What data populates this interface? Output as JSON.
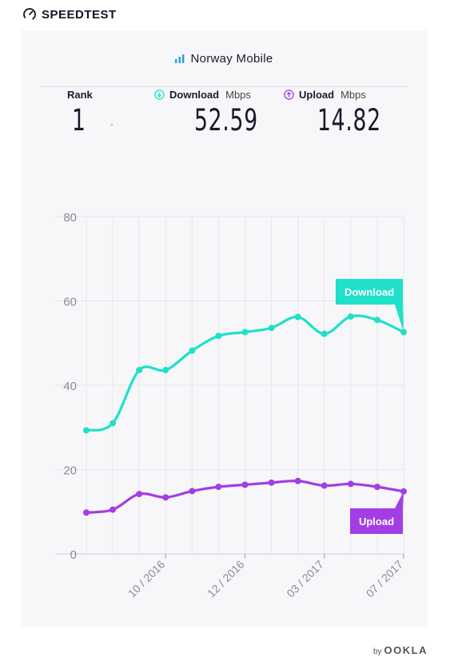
{
  "brand": {
    "name": "SPEEDTEST",
    "icon": "gauge-icon"
  },
  "card": {
    "title": "Norway Mobile",
    "title_icon": "signal-bars-icon"
  },
  "metrics": {
    "rank": {
      "label": "Rank",
      "value": "1",
      "change": "-"
    },
    "download": {
      "label": "Download",
      "unit": "Mbps",
      "value": "52.59",
      "color": "#1fe0c8"
    },
    "upload": {
      "label": "Upload",
      "unit": "Mbps",
      "value": "14.82",
      "color": "#a23ee4"
    }
  },
  "footer": {
    "by": "by",
    "company": "OOKLA"
  },
  "chart_data": {
    "type": "line",
    "ylim": [
      0,
      80
    ],
    "yticks": [
      0,
      20,
      40,
      60,
      80
    ],
    "xtick_labels": [
      "10 / 2016",
      "12 / 2016",
      "03 / 2017",
      "07 / 2017"
    ],
    "xtick_index": [
      3,
      6,
      9,
      12
    ],
    "grid": true,
    "series": [
      {
        "name": "Download",
        "color": "#1fe0c8",
        "values": [
          29.3,
          31,
          43.6,
          43.6,
          48.2,
          51.7,
          52.6,
          53.6,
          56.2,
          52.2,
          56.3,
          55.5,
          52.59
        ]
      },
      {
        "name": "Upload",
        "color": "#a23ee4",
        "values": [
          9.8,
          10.5,
          14.2,
          13.4,
          14.9,
          15.9,
          16.4,
          16.9,
          17.3,
          16.2,
          16.6,
          15.9,
          14.82
        ]
      }
    ]
  }
}
